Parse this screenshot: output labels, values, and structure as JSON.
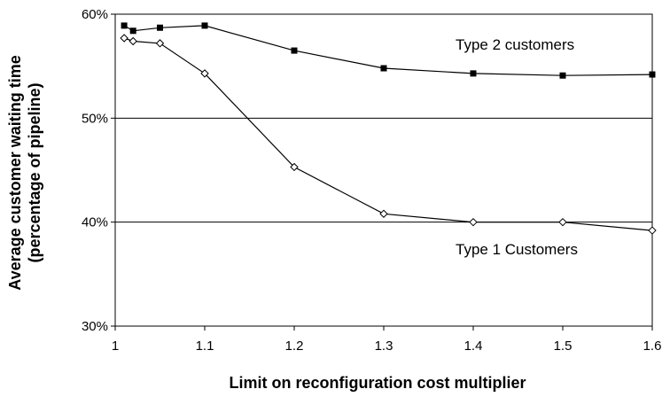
{
  "chart_data": {
    "type": "line",
    "title": "",
    "xlabel": "Limit on reconfiguration cost multiplier",
    "ylabel_line1": "Average customer waiting time",
    "ylabel_line2": "(percentage of pipeline)",
    "xlim": [
      1.0,
      1.6
    ],
    "ylim": [
      30,
      60
    ],
    "x_ticks": [
      "1",
      "1.1",
      "1.2",
      "1.3",
      "1.4",
      "1.5",
      "1.6"
    ],
    "x_tick_values": [
      1.0,
      1.1,
      1.2,
      1.3,
      1.4,
      1.5,
      1.6
    ],
    "y_ticks": [
      "30%",
      "40%",
      "50%",
      "60%"
    ],
    "y_tick_values": [
      30,
      40,
      50,
      60
    ],
    "grid": "horizontal",
    "series": [
      {
        "name": "Type 2 customers",
        "marker": "filled-square",
        "color": "#000000",
        "x": [
          1.01,
          1.02,
          1.05,
          1.1,
          1.2,
          1.3,
          1.4,
          1.5,
          1.6
        ],
        "values": [
          58.9,
          58.4,
          58.7,
          58.9,
          56.5,
          54.8,
          54.3,
          54.1,
          54.2
        ]
      },
      {
        "name": "Type 1 Customers",
        "marker": "open-diamond",
        "color": "#000000",
        "x": [
          1.01,
          1.02,
          1.05,
          1.1,
          1.2,
          1.3,
          1.4,
          1.5,
          1.6
        ],
        "values": [
          57.7,
          57.4,
          57.2,
          54.3,
          45.3,
          40.8,
          40.0,
          40.0,
          39.2
        ]
      }
    ]
  }
}
